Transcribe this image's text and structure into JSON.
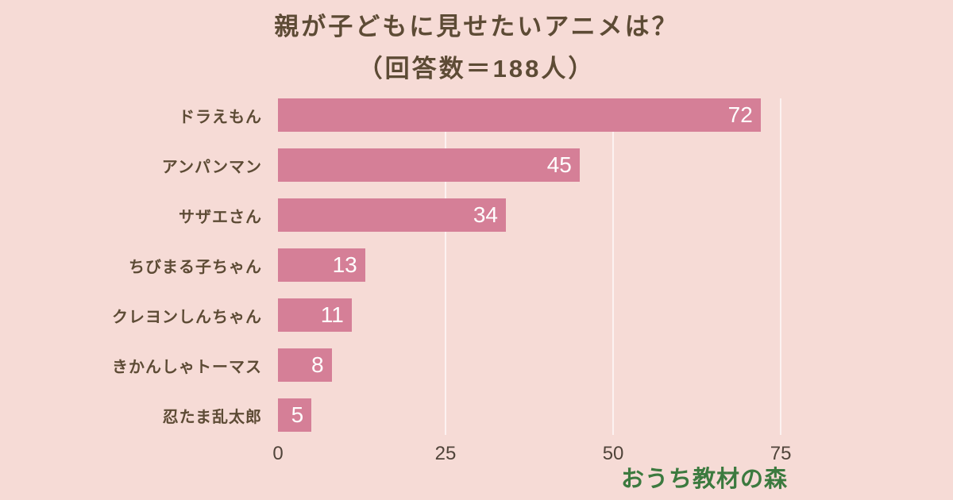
{
  "title": {
    "line1": "親が子どもに見せたいアニメは？",
    "line2": "（回答数＝188人）"
  },
  "chart_data": {
    "type": "bar",
    "orientation": "horizontal",
    "title": "親が子どもに見せたいアニメは？（回答数＝188人）",
    "categories": [
      "ドラえもん",
      "アンパンマン",
      "サザエさん",
      "ちびまる子ちゃん",
      "クレヨンしんちゃん",
      "きかんしゃトーマス",
      "忍たま乱太郎"
    ],
    "values": [
      72,
      45,
      34,
      13,
      11,
      8,
      5
    ],
    "respondent_count": 188,
    "xlim": [
      0,
      77
    ],
    "xticks": [
      0,
      25,
      50,
      75
    ],
    "grid": true,
    "legend": "none",
    "bar_color": "#d57f97",
    "background_color": "#f6dbd6",
    "value_label_color": "#ffffff",
    "text_color": "#5d4b35"
  },
  "watermark": {
    "text": "おうち教材の森",
    "color": "#3c7a3f"
  }
}
